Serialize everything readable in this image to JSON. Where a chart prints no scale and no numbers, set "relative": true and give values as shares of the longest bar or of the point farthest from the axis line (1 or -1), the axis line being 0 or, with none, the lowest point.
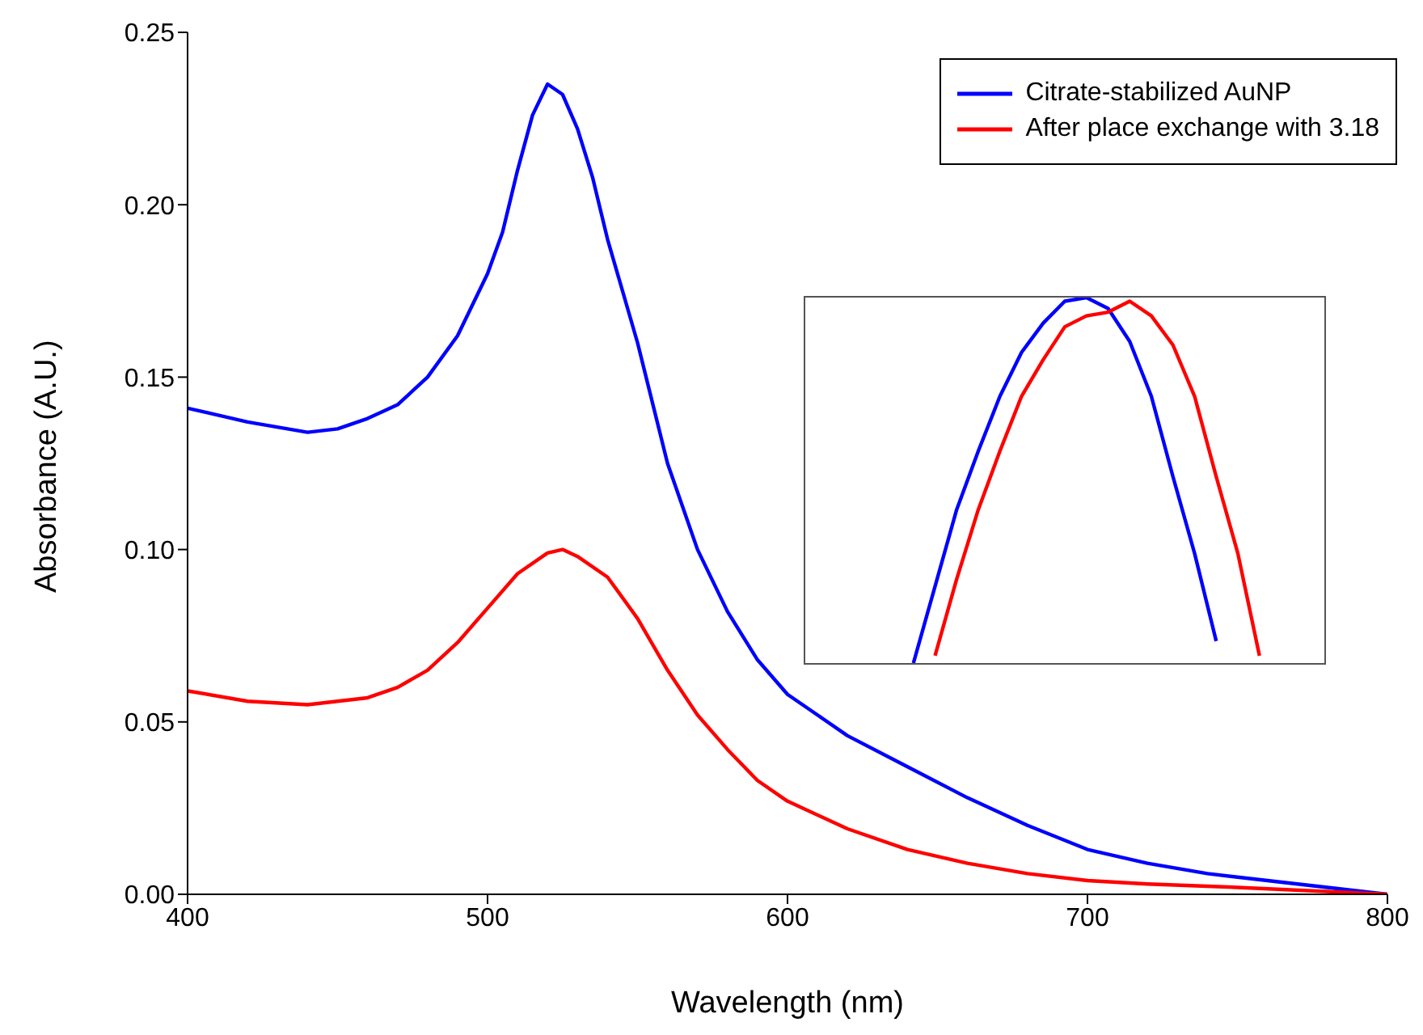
{
  "chart_data": [
    {
      "type": "line",
      "xlabel": "Wavelength (nm)",
      "ylabel": "Absorbance (A.U.)",
      "xlim": [
        400,
        800
      ],
      "xticks": [
        400,
        500,
        600,
        700,
        800
      ],
      "ylim": [
        0,
        0.25
      ],
      "yticks": [
        {
          "value": 0,
          "label": "0.00"
        },
        {
          "value": 0.05,
          "label": "0.05"
        },
        {
          "value": 0.1,
          "label": "0.10"
        },
        {
          "value": 0.15,
          "label": "0.15"
        },
        {
          "value": 0.2,
          "label": "0.20"
        },
        {
          "value": 0.25,
          "label": "0.25"
        }
      ],
      "legend": "top right",
      "grid": false,
      "series": [
        {
          "name": "Citrate-stabilized AuNP",
          "color": "#0000ff",
          "x": [
            400,
            420,
            440,
            450,
            460,
            470,
            480,
            490,
            500,
            505,
            510,
            515,
            520,
            525,
            530,
            535,
            540,
            550,
            560,
            570,
            580,
            590,
            600,
            610,
            620,
            640,
            660,
            680,
            700,
            720,
            740,
            760,
            780,
            800
          ],
          "values": [
            0.141,
            0.137,
            0.134,
            0.135,
            0.138,
            0.142,
            0.15,
            0.162,
            0.18,
            0.192,
            0.21,
            0.226,
            0.235,
            0.232,
            0.222,
            0.208,
            0.19,
            0.16,
            0.125,
            0.1,
            0.082,
            0.068,
            0.058,
            0.052,
            0.046,
            0.037,
            0.028,
            0.02,
            0.013,
            0.009,
            0.006,
            0.004,
            0.002,
            0.0
          ]
        },
        {
          "name": "After place exchange with 3.18",
          "color": "#ff0000",
          "x": [
            400,
            420,
            440,
            460,
            470,
            480,
            490,
            500,
            510,
            520,
            525,
            530,
            540,
            550,
            560,
            570,
            580,
            590,
            600,
            620,
            640,
            660,
            680,
            700,
            720,
            750,
            800
          ],
          "values": [
            0.059,
            0.056,
            0.055,
            0.057,
            0.06,
            0.065,
            0.073,
            0.083,
            0.093,
            0.099,
            0.1,
            0.098,
            0.092,
            0.08,
            0.065,
            0.052,
            0.042,
            0.033,
            0.027,
            0.019,
            0.013,
            0.009,
            0.006,
            0.004,
            0.003,
            0.002,
            0.0
          ]
        }
      ]
    },
    {
      "type": "line",
      "relative": true,
      "categories": [
        null,
        null,
        null,
        null,
        null,
        null,
        null,
        null,
        null,
        null,
        null,
        null,
        null,
        null,
        null,
        null,
        null,
        null,
        null,
        null,
        null,
        null,
        null,
        null,
        null
      ],
      "series": [
        {
          "color": "#0000ff",
          "values": [
            null,
            null,
            null,
            null,
            null,
            0.0,
            0.21,
            0.42,
            0.58,
            0.73,
            0.85,
            0.93,
            0.99,
            1.0,
            0.97,
            0.88,
            0.73,
            0.51,
            0.3,
            0.06,
            null,
            null,
            null,
            null,
            null
          ]
        },
        {
          "color": "#ff0000",
          "values": [
            null,
            null,
            null,
            null,
            null,
            null,
            0.02,
            0.23,
            0.42,
            0.58,
            0.73,
            0.83,
            0.92,
            0.95,
            0.96,
            0.99,
            0.95,
            0.87,
            0.73,
            0.51,
            0.3,
            0.02,
            null,
            null,
            null
          ]
        }
      ]
    }
  ]
}
